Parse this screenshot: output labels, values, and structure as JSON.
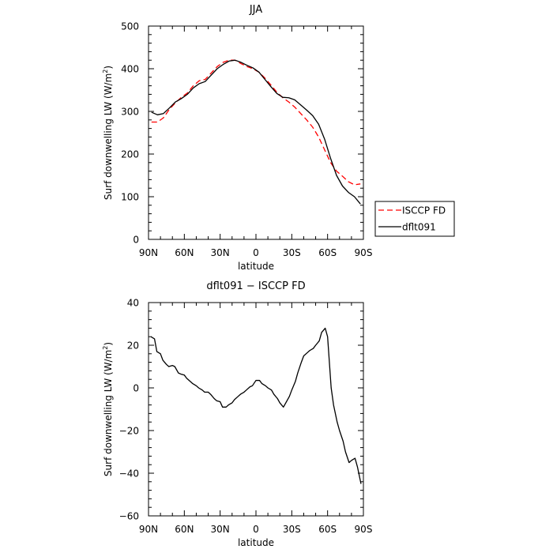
{
  "chart_data": [
    {
      "type": "line",
      "title": "JJA",
      "xlabel": "latitude",
      "ylabel": "Surf downwelling LW (W/m²)",
      "ylabel_main": "Surf downwelling LW (W/m",
      "ylabel_sup": "2",
      "ylabel_close": ")",
      "xlim": [
        90,
        -90
      ],
      "ylim": [
        0,
        500
      ],
      "x_ticks": [
        90,
        60,
        30,
        0,
        -30,
        -60,
        -90
      ],
      "x_tick_labels": [
        "90N",
        "60N",
        "30N",
        "0",
        "30S",
        "60S",
        "90S"
      ],
      "y_ticks": [
        0,
        100,
        200,
        300,
        400,
        500
      ],
      "y_tick_labels": [
        "0",
        "100",
        "200",
        "300",
        "400",
        "500"
      ],
      "grid": false,
      "legend_position": "right",
      "series": [
        {
          "name": "ISCCP FD",
          "color": "#ff0000",
          "dash": "dashed",
          "x": [
            87.5,
            82.5,
            77.5,
            72.5,
            67.5,
            62.5,
            57.5,
            52.5,
            47.5,
            42.5,
            37.5,
            32.5,
            27.5,
            22.5,
            17.5,
            12.5,
            7.5,
            2.5,
            -2.5,
            -7.5,
            -12.5,
            -17.5,
            -22.5,
            -27.5,
            -32.5,
            -37.5,
            -42.5,
            -47.5,
            -52.5,
            -57.5,
            -62.5,
            -67.5,
            -72.5,
            -77.5,
            -82.5,
            -87.5
          ],
          "y": [
            275,
            275,
            285,
            305,
            320,
            333,
            343,
            360,
            372,
            375,
            390,
            405,
            415,
            420,
            420,
            412,
            405,
            400,
            392,
            378,
            362,
            345,
            332,
            322,
            310,
            295,
            280,
            263,
            240,
            210,
            180,
            160,
            148,
            135,
            128,
            130
          ]
        },
        {
          "name": "dflt091",
          "color": "#000000",
          "dash": "solid",
          "x": [
            87.5,
            82.5,
            77.5,
            72.5,
            67.5,
            62.5,
            57.5,
            52.5,
            47.5,
            42.5,
            37.5,
            32.5,
            27.5,
            22.5,
            17.5,
            12.5,
            7.5,
            2.5,
            -2.5,
            -7.5,
            -12.5,
            -17.5,
            -22.5,
            -27.5,
            -32.5,
            -37.5,
            -42.5,
            -47.5,
            -52.5,
            -57.5,
            -62.5,
            -67.5,
            -72.5,
            -77.5,
            -82.5,
            -87.5
          ],
          "y": [
            298,
            292,
            295,
            308,
            322,
            330,
            340,
            355,
            365,
            370,
            385,
            400,
            410,
            418,
            420,
            415,
            408,
            402,
            392,
            375,
            358,
            342,
            333,
            332,
            327,
            315,
            303,
            290,
            270,
            235,
            190,
            150,
            125,
            110,
            100,
            83
          ]
        }
      ]
    },
    {
      "type": "line",
      "title": "dflt091 − ISCCP FD",
      "xlabel": "latitude",
      "ylabel": "Surf downwelling LW (W/m²)",
      "ylabel_main": "Surf downwelling LW (W/m",
      "ylabel_sup": "2",
      "ylabel_close": ")",
      "xlim": [
        90,
        -90
      ],
      "ylim": [
        -60,
        40
      ],
      "x_ticks": [
        90,
        60,
        30,
        0,
        -30,
        -60,
        -90
      ],
      "x_tick_labels": [
        "90N",
        "60N",
        "30N",
        "0",
        "30S",
        "60S",
        "90S"
      ],
      "y_ticks": [
        -60,
        -40,
        -20,
        0,
        20,
        40
      ],
      "y_tick_labels": [
        "−60",
        "−40",
        "−20",
        "0",
        "20",
        "40"
      ],
      "grid": false,
      "series": [
        {
          "color": "#000000",
          "dash": "solid",
          "x": [
            88,
            85,
            83,
            80,
            78,
            75,
            73,
            70,
            68,
            65,
            63,
            60,
            58,
            55,
            53,
            50,
            48,
            45,
            43,
            40,
            38,
            35,
            33,
            30,
            28,
            25,
            23,
            20,
            18,
            15,
            13,
            10,
            8,
            5,
            3,
            0,
            -3,
            -5,
            -8,
            -10,
            -13,
            -15,
            -18,
            -20,
            -23,
            -25,
            -28,
            -30,
            -33,
            -35,
            -38,
            -40,
            -43,
            -45,
            -48,
            -50,
            -53,
            -55,
            -58,
            -60,
            -63,
            -65,
            -68,
            -70,
            -73,
            -75,
            -78,
            -80,
            -83,
            -85,
            -88
          ],
          "y": [
            24,
            23,
            17,
            16,
            13,
            11,
            10,
            10.5,
            10,
            7,
            6.5,
            6,
            4.5,
            3,
            2,
            1,
            0,
            -1,
            -2,
            -2,
            -3,
            -5,
            -6,
            -6.5,
            -9,
            -9,
            -8,
            -7,
            -5.5,
            -4,
            -3,
            -2,
            -1,
            0.5,
            1,
            3.5,
            3.5,
            2,
            1,
            0,
            -1,
            -3,
            -5,
            -7,
            -9,
            -7,
            -4,
            -1,
            3,
            7,
            12,
            15,
            16.5,
            17.5,
            18.5,
            20,
            22,
            26,
            28,
            24,
            0,
            -8,
            -16,
            -20,
            -25,
            -30,
            -35,
            -34,
            -33,
            -37,
            -45
          ]
        }
      ]
    }
  ]
}
